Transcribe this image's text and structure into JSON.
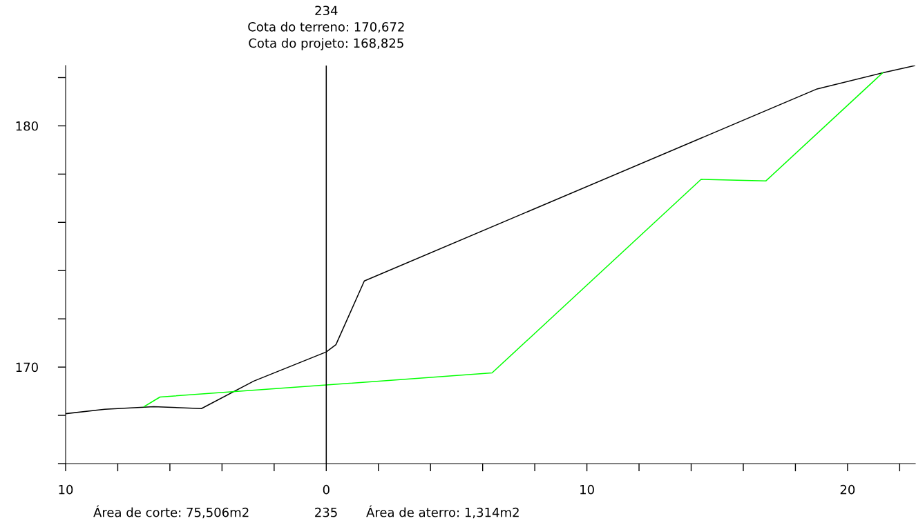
{
  "chart_data": {
    "type": "line",
    "series": [
      {
        "color": "#000000",
        "x": [
          -9.99,
          -8.5,
          -6.62,
          -4.79,
          -2.78,
          0,
          0.37,
          1.46,
          18.83,
          21.35,
          22.6
        ],
        "values": [
          168.07,
          168.25,
          168.36,
          168.28,
          169.42,
          170.63,
          170.93,
          173.57,
          181.53,
          182.2,
          182.5
        ]
      },
      {
        "color": "#00ff00",
        "x": [
          -6.99,
          -6.38,
          0,
          6.36,
          14.38,
          16.87,
          21.35
        ],
        "values": [
          168.36,
          168.76,
          169.26,
          169.76,
          177.78,
          177.72,
          182.2
        ]
      }
    ],
    "xlim": [
      -10,
      22.6
    ],
    "ylim": [
      166,
      182.5
    ],
    "xticks": [
      {
        "value": -10,
        "label": "10"
      },
      {
        "value": -8,
        "label": null
      },
      {
        "value": -6,
        "label": null
      },
      {
        "value": -4,
        "label": null
      },
      {
        "value": -2,
        "label": null
      },
      0,
      {
        "value": 2,
        "label": null
      },
      {
        "value": 4,
        "label": null
      },
      {
        "value": 6,
        "label": null
      },
      {
        "value": 8,
        "label": null
      },
      10,
      {
        "value": 12,
        "label": null
      },
      {
        "value": 14,
        "label": null
      },
      {
        "value": 16,
        "label": null
      },
      {
        "value": 18,
        "label": null
      },
      20,
      {
        "value": 22,
        "label": null
      }
    ],
    "yticks": [
      {
        "value": 166,
        "label": null
      },
      {
        "value": 168,
        "label": null
      },
      170,
      {
        "value": 172,
        "label": null
      },
      {
        "value": 174,
        "label": null
      },
      {
        "value": 176,
        "label": null
      },
      {
        "value": 178,
        "label": null
      },
      180,
      {
        "value": 182,
        "label": null
      }
    ],
    "ref_lines": [
      {
        "axis": "x",
        "value": 0,
        "color": "#000000"
      }
    ],
    "annotations": [
      "234",
      "Cota do terreno: 170,672",
      "Cota do projeto: 168,825",
      "Área de corte: 75,506m2",
      "Área de aterro: 1,314m2",
      "235"
    ],
    "grid": false,
    "legend": false,
    "marker": "none",
    "line_style": "solid"
  }
}
